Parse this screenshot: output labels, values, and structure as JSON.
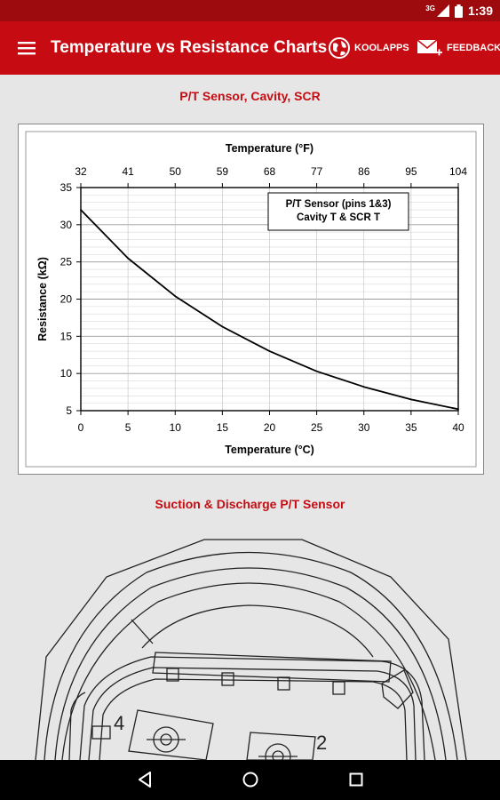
{
  "status_bar": {
    "time": "1:39",
    "network_label": "3G",
    "icons": [
      "signal-icon",
      "battery-icon"
    ]
  },
  "app_bar": {
    "title": "Temperature vs Resistance Charts",
    "actions": [
      {
        "label": "KOOLAPPS",
        "icon": "globe-icon"
      },
      {
        "label": "FEEDBACK",
        "icon": "mail-icon"
      }
    ]
  },
  "sections": [
    {
      "title": "P/T Sensor, Cavity, SCR"
    },
    {
      "title": "Suction & Discharge P/T Sensor"
    }
  ],
  "chart_data": {
    "type": "line",
    "title": "",
    "xlabel": "Temperature (°C)",
    "x2label": "Temperature (°F)",
    "ylabel": "Resistance (kΩ)",
    "xlim": [
      0,
      40
    ],
    "ylim": [
      5,
      35
    ],
    "x_ticks": [
      0,
      5,
      10,
      15,
      20,
      25,
      30,
      35,
      40
    ],
    "x2_ticks": [
      32,
      41,
      50,
      59,
      68,
      77,
      86,
      95,
      104
    ],
    "y_ticks": [
      5,
      10,
      15,
      20,
      25,
      30,
      35
    ],
    "grid": true,
    "legend": {
      "lines": [
        "P/T Sensor (pins 1&3)",
        "Cavity T & SCR T"
      ],
      "placement": "top-right"
    },
    "series": [
      {
        "x": [
          0,
          5,
          10,
          15,
          20,
          25,
          30,
          35,
          40
        ],
        "values": [
          32.0,
          25.5,
          20.4,
          16.3,
          13.0,
          10.3,
          8.2,
          6.5,
          5.2
        ]
      }
    ]
  },
  "nav_bar": {
    "buttons": [
      "back-icon",
      "home-icon",
      "recents-icon"
    ]
  }
}
